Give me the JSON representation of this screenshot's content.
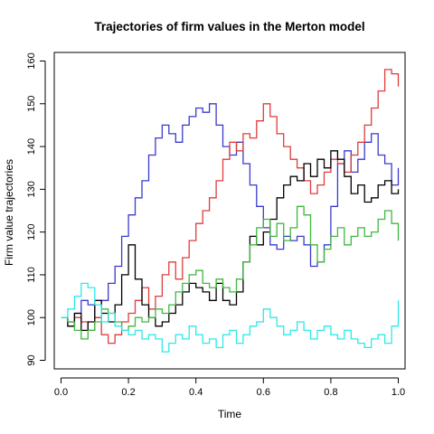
{
  "chart_data": {
    "type": "line",
    "title": "Trajectories of firm values in the Merton model",
    "xlabel": "Time",
    "ylabel": "Firm value trajectories",
    "xlim": [
      -0.02,
      1.02
    ],
    "ylim": [
      88,
      162
    ],
    "xticks": [
      0.0,
      0.2,
      0.4,
      0.6,
      0.8,
      1.0
    ],
    "xtick_labels": [
      "0.0",
      "0.2",
      "0.4",
      "0.6",
      "0.8",
      "1.0"
    ],
    "yticks": [
      90,
      100,
      110,
      120,
      130,
      140,
      150,
      160
    ],
    "ytick_labels": [
      "90",
      "100",
      "110",
      "120",
      "130",
      "140",
      "150",
      "160"
    ],
    "grid": false,
    "legend": "none",
    "series": [
      {
        "color": "#3a3acf",
        "x": [
          0.0,
          0.02,
          0.04,
          0.06,
          0.08,
          0.1,
          0.12,
          0.14,
          0.16,
          0.18,
          0.2,
          0.22,
          0.24,
          0.26,
          0.28,
          0.3,
          0.32,
          0.34,
          0.36,
          0.38,
          0.4,
          0.42,
          0.44,
          0.46,
          0.48,
          0.5,
          0.52,
          0.54,
          0.56,
          0.58,
          0.6,
          0.62,
          0.64,
          0.66,
          0.68,
          0.7,
          0.72,
          0.74,
          0.76,
          0.78,
          0.8,
          0.82,
          0.84,
          0.86,
          0.88,
          0.9,
          0.92,
          0.94,
          0.96,
          0.98,
          1.0
        ],
        "y": [
          100,
          99,
          101,
          104,
          103,
          100,
          104,
          108,
          112,
          119,
          124,
          128,
          132,
          138,
          142,
          145,
          143,
          141,
          145,
          147,
          149,
          148,
          150,
          145,
          140,
          138,
          141,
          136,
          131,
          126,
          121,
          117,
          116,
          119,
          118,
          119,
          117,
          112,
          113,
          117,
          126,
          136,
          139,
          134,
          137,
          141,
          143,
          138,
          136,
          131,
          135
        ]
      },
      {
        "color": "#e03c3c",
        "x": [
          0.0,
          0.02,
          0.04,
          0.06,
          0.08,
          0.1,
          0.12,
          0.14,
          0.16,
          0.18,
          0.2,
          0.22,
          0.24,
          0.26,
          0.28,
          0.3,
          0.32,
          0.34,
          0.36,
          0.38,
          0.4,
          0.42,
          0.44,
          0.46,
          0.48,
          0.5,
          0.52,
          0.54,
          0.56,
          0.58,
          0.6,
          0.62,
          0.64,
          0.66,
          0.68,
          0.7,
          0.72,
          0.74,
          0.76,
          0.78,
          0.8,
          0.82,
          0.84,
          0.86,
          0.88,
          0.9,
          0.92,
          0.94,
          0.96,
          0.98,
          1.0
        ],
        "y": [
          100,
          98,
          100,
          99,
          97,
          100,
          96,
          94,
          96,
          99,
          101,
          104,
          107,
          102,
          105,
          110,
          113,
          109,
          114,
          118,
          122,
          125,
          128,
          132,
          137,
          141,
          139,
          143,
          142,
          146,
          150,
          147,
          143,
          140,
          137,
          135,
          132,
          129,
          131,
          134,
          137,
          136,
          134,
          138,
          141,
          145,
          149,
          153,
          158,
          157,
          154
        ]
      },
      {
        "color": "#000000",
        "x": [
          0.0,
          0.02,
          0.04,
          0.06,
          0.08,
          0.1,
          0.12,
          0.14,
          0.16,
          0.18,
          0.2,
          0.22,
          0.24,
          0.26,
          0.28,
          0.3,
          0.32,
          0.34,
          0.36,
          0.38,
          0.4,
          0.42,
          0.44,
          0.46,
          0.48,
          0.5,
          0.52,
          0.54,
          0.56,
          0.58,
          0.6,
          0.62,
          0.64,
          0.66,
          0.68,
          0.7,
          0.72,
          0.74,
          0.76,
          0.78,
          0.8,
          0.82,
          0.84,
          0.86,
          0.88,
          0.9,
          0.92,
          0.94,
          0.96,
          0.98,
          1.0
        ],
        "y": [
          100,
          98,
          101,
          97,
          99,
          104,
          101,
          99,
          103,
          110,
          117,
          109,
          103,
          100,
          98,
          99,
          101,
          103,
          106,
          108,
          107,
          106,
          104,
          108,
          104,
          103,
          106,
          113,
          119,
          117,
          120,
          123,
          128,
          131,
          133,
          132,
          136,
          133,
          137,
          135,
          139,
          137,
          133,
          129,
          131,
          127,
          128,
          131,
          132,
          129,
          130
        ]
      },
      {
        "color": "#3fb83f",
        "x": [
          0.0,
          0.02,
          0.04,
          0.06,
          0.08,
          0.1,
          0.12,
          0.14,
          0.16,
          0.18,
          0.2,
          0.22,
          0.24,
          0.26,
          0.28,
          0.3,
          0.32,
          0.34,
          0.36,
          0.38,
          0.4,
          0.42,
          0.44,
          0.46,
          0.48,
          0.5,
          0.52,
          0.54,
          0.56,
          0.58,
          0.6,
          0.62,
          0.64,
          0.66,
          0.68,
          0.7,
          0.72,
          0.74,
          0.76,
          0.78,
          0.8,
          0.82,
          0.84,
          0.86,
          0.88,
          0.9,
          0.92,
          0.94,
          0.96,
          0.98,
          1.0
        ],
        "y": [
          100,
          99,
          97,
          95,
          97,
          99,
          102,
          101,
          99,
          97,
          98,
          100,
          99,
          100,
          102,
          101,
          103,
          106,
          108,
          110,
          111,
          108,
          107,
          109,
          107,
          106,
          109,
          113,
          117,
          121,
          123,
          119,
          122,
          118,
          121,
          126,
          124,
          117,
          113,
          116,
          119,
          121,
          117,
          119,
          121,
          119,
          120,
          123,
          125,
          122,
          118
        ]
      },
      {
        "color": "#2ee8e8",
        "x": [
          0.0,
          0.02,
          0.04,
          0.06,
          0.08,
          0.1,
          0.12,
          0.14,
          0.16,
          0.18,
          0.2,
          0.22,
          0.24,
          0.26,
          0.28,
          0.3,
          0.32,
          0.34,
          0.36,
          0.38,
          0.4,
          0.42,
          0.44,
          0.46,
          0.48,
          0.5,
          0.52,
          0.54,
          0.56,
          0.58,
          0.6,
          0.62,
          0.64,
          0.66,
          0.68,
          0.7,
          0.72,
          0.74,
          0.76,
          0.78,
          0.8,
          0.82,
          0.84,
          0.86,
          0.88,
          0.9,
          0.92,
          0.94,
          0.96,
          0.98,
          1.0
        ],
        "y": [
          100,
          102,
          105,
          108,
          107,
          103,
          99,
          101,
          98,
          97,
          96,
          97,
          95,
          96,
          95,
          92,
          94,
          96,
          95,
          98,
          96,
          94,
          95,
          93,
          96,
          97,
          94,
          96,
          98,
          99,
          102,
          100,
          98,
          96,
          97,
          99,
          97,
          95,
          97,
          98,
          96,
          95,
          97,
          95,
          94,
          93,
          95,
          96,
          94,
          98,
          104
        ]
      }
    ]
  }
}
